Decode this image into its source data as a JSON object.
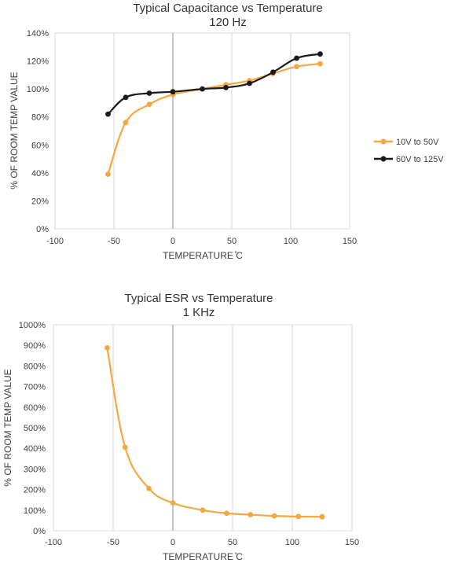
{
  "chart_data": [
    {
      "type": "line",
      "title": "Typical Capacitance vs Temperature",
      "subtitle": "120 Hz",
      "xlabel": "TEMPERATURE  ̊C",
      "ylabel": "% OF ROOM TEMP VALUE",
      "xlim": [
        -100,
        150
      ],
      "ylim": [
        0,
        140
      ],
      "x_ticks": [
        "-100",
        "-50",
        "0",
        "50",
        "100",
        "150"
      ],
      "y_ticks": [
        "0%",
        "20%",
        "40%",
        "60%",
        "80%",
        "100%",
        "120%",
        "140%"
      ],
      "grid": "vertical",
      "legend_position": "right",
      "series": [
        {
          "name": "10V to 50V",
          "color": "#F5A742",
          "x": [
            -55,
            -40,
            -20,
            0,
            25,
            45,
            65,
            85,
            105,
            125
          ],
          "y": [
            39,
            76,
            89,
            96,
            100,
            103,
            106,
            111,
            116,
            118
          ]
        },
        {
          "name": "60V to 125V",
          "color": "#1A1A1A",
          "x": [
            -55,
            -40,
            -20,
            0,
            25,
            45,
            65,
            85,
            105,
            125
          ],
          "y": [
            82,
            94,
            97,
            98,
            100,
            101,
            104,
            112,
            122,
            125
          ]
        }
      ]
    },
    {
      "type": "line",
      "title": "Typical ESR vs Temperature",
      "subtitle": "1 KHz",
      "xlabel": "TEMPERATURE  ̊C",
      "ylabel": "% OF ROOM TEMP VALUE",
      "xlim": [
        -100,
        150
      ],
      "ylim": [
        0,
        1000
      ],
      "x_ticks": [
        "-100",
        "-50",
        "0",
        "50",
        "100",
        "150"
      ],
      "y_ticks": [
        "0%",
        "100%",
        "200%",
        "300%",
        "400%",
        "500%",
        "600%",
        "700%",
        "800%",
        "900%",
        "1000%"
      ],
      "grid": "vertical",
      "series": [
        {
          "color": "#F5A742",
          "x": [
            -55,
            -40,
            -20,
            0,
            25,
            45,
            65,
            85,
            105,
            125
          ],
          "y": [
            888,
            405,
            205,
            135,
            100,
            85,
            78,
            72,
            69,
            68
          ]
        }
      ]
    }
  ]
}
